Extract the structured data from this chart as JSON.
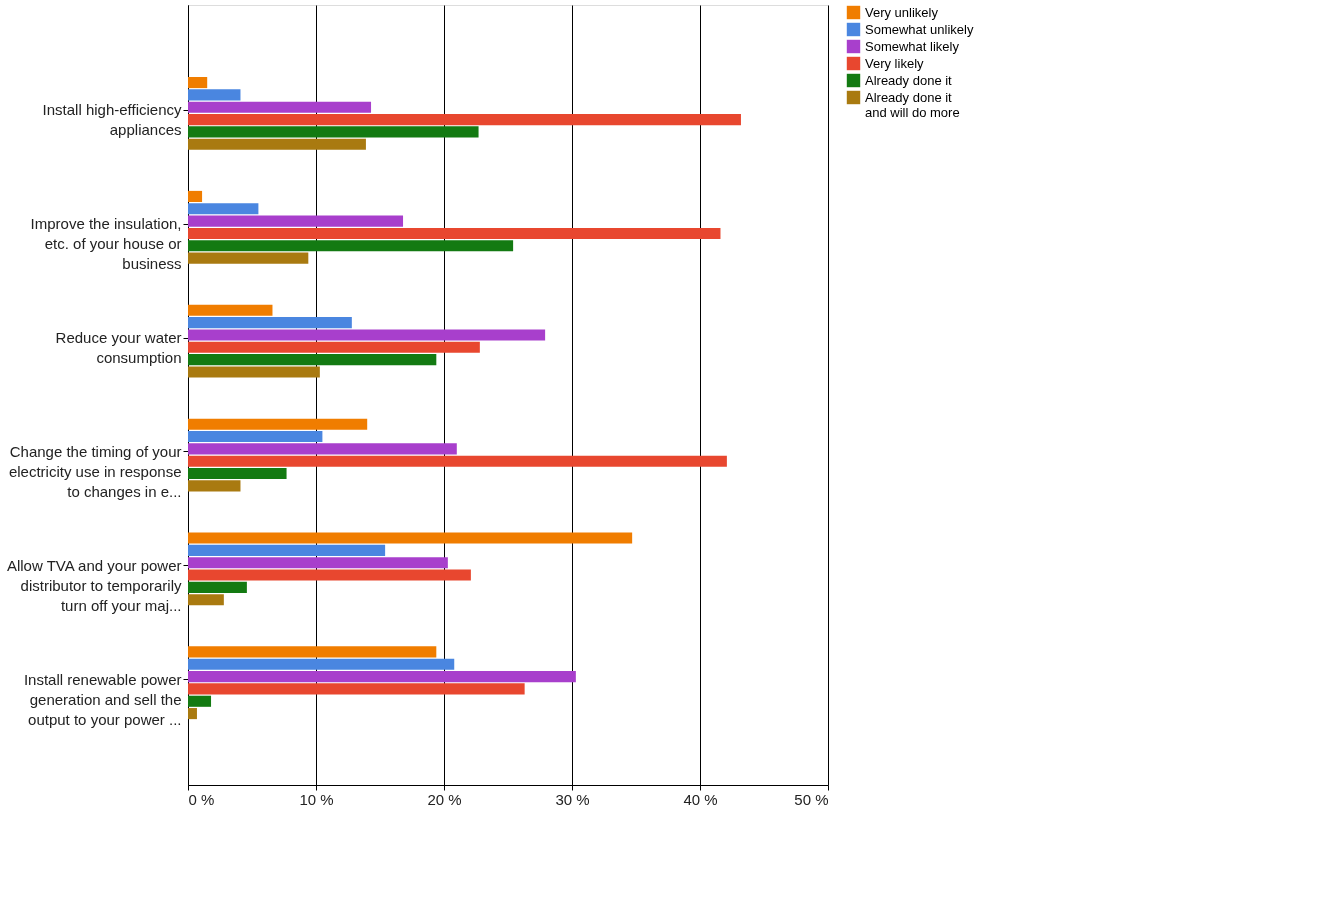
{
  "chart_data": {
    "type": "bar",
    "orientation": "horizontal",
    "categories": [
      "Install high-efficiency appliances",
      "Improve the insulation, etc. of your house or business",
      "Reduce your water consumption",
      "Change the timing of your electricity use in response to changes in e...",
      "Allow TVA and your power distributor to temporarily turn off your maj...",
      "Install renewable power generation and sell the output to your power ..."
    ],
    "series": [
      {
        "name": "Very unlikely",
        "color": "#f07d00",
        "values": [
          1.5,
          1.1,
          6.6,
          14.0,
          34.7,
          19.4
        ]
      },
      {
        "name": "Somewhat unlikely",
        "color": "#4a86e0",
        "values": [
          4.1,
          5.5,
          12.8,
          10.5,
          15.4,
          20.8
        ]
      },
      {
        "name": "Somewhat likely",
        "color": "#a83fcc",
        "values": [
          14.3,
          16.8,
          27.9,
          21.0,
          20.3,
          30.3
        ]
      },
      {
        "name": "Very likely",
        "color": "#e8472f",
        "values": [
          43.2,
          41.6,
          22.8,
          42.1,
          22.1,
          26.3
        ]
      },
      {
        "name": "Already done it",
        "color": "#137a12",
        "values": [
          22.7,
          25.4,
          19.4,
          7.7,
          4.6,
          1.8
        ]
      },
      {
        "name": "Already done it and will do more",
        "color": "#a97a10",
        "values": [
          13.9,
          9.4,
          10.3,
          4.1,
          2.8,
          0.7
        ]
      }
    ],
    "xlim": [
      0,
      50
    ],
    "xticks": [
      {
        "value": 0,
        "label": "0 %"
      },
      {
        "value": 10,
        "label": "10 %"
      },
      {
        "value": 20,
        "label": "20 %"
      },
      {
        "value": 30,
        "label": "30 %"
      },
      {
        "value": 40,
        "label": "40 %"
      },
      {
        "value": 50,
        "label": "50 %"
      }
    ],
    "grid": "x",
    "legend": "right"
  }
}
